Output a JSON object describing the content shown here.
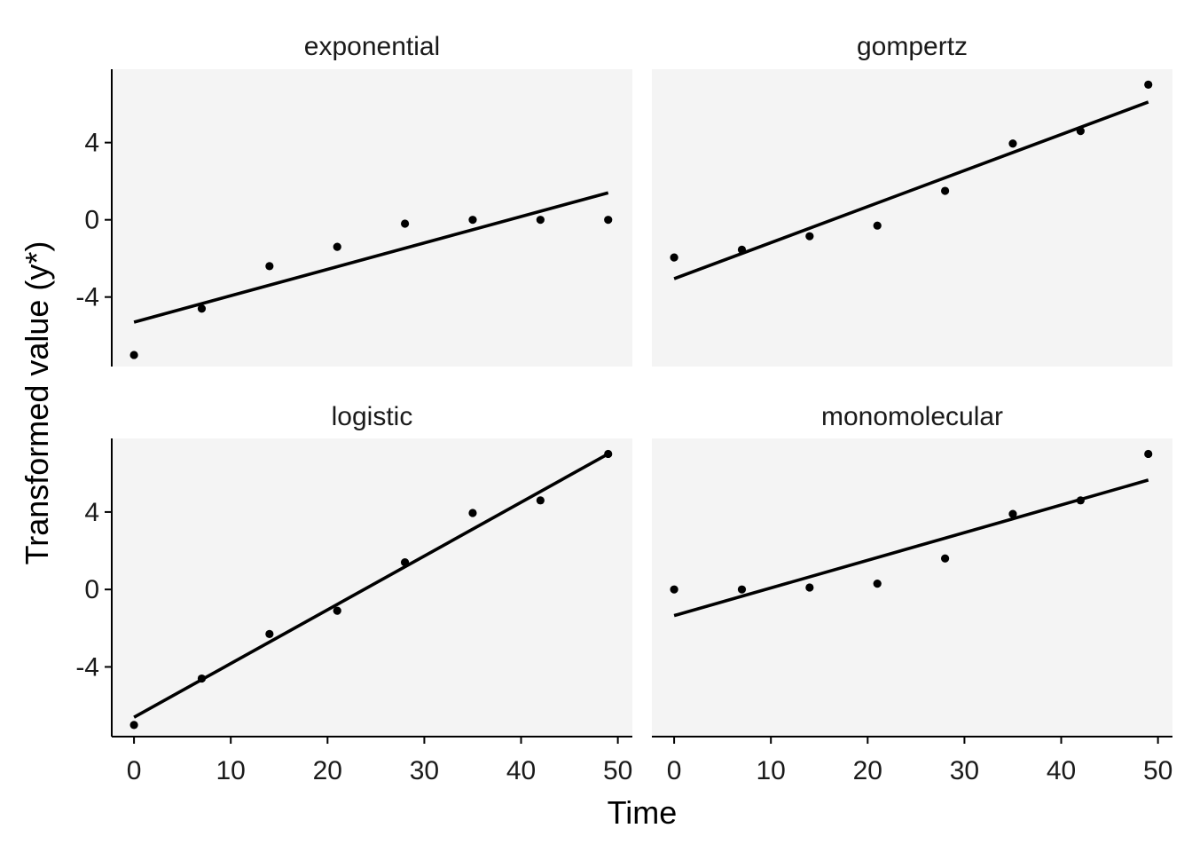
{
  "chart_data": {
    "type": "scatter",
    "layout": "facet-2x2",
    "xlabel": "Time",
    "ylabel": "Transformed value (y*)",
    "xlim": [
      -2.3,
      51.5
    ],
    "ylim": [
      -7.6,
      7.8
    ],
    "x_ticks": [
      0,
      10,
      20,
      30,
      40,
      50
    ],
    "y_ticks": [
      -4,
      0,
      4
    ],
    "grid": false,
    "colors": {
      "panel_background": "#f4f4f4",
      "points": "#000000",
      "lines": "#000000"
    },
    "x": [
      0,
      7,
      14,
      21,
      28,
      35,
      42,
      49
    ],
    "panels": [
      {
        "title": "exponential",
        "y": [
          -7.0,
          -4.6,
          -2.4,
          -1.4,
          -0.2,
          0.0,
          0.0,
          0.0
        ],
        "fit": {
          "x": [
            0,
            49
          ],
          "y": [
            -5.3,
            1.4
          ]
        }
      },
      {
        "title": "gompertz",
        "y": [
          -1.95,
          -1.55,
          -0.85,
          -0.3,
          1.5,
          3.95,
          4.6,
          7.0
        ],
        "fit": {
          "x": [
            0,
            49
          ],
          "y": [
            -3.05,
            6.1
          ]
        }
      },
      {
        "title": "logistic",
        "y": [
          -7.0,
          -4.6,
          -2.3,
          -1.1,
          1.4,
          3.95,
          4.6,
          7.0
        ],
        "fit": {
          "x": [
            0,
            49
          ],
          "y": [
            -6.6,
            7.0
          ]
        }
      },
      {
        "title": "monomolecular",
        "y": [
          0.0,
          0.0,
          0.1,
          0.3,
          1.6,
          3.9,
          4.6,
          7.0
        ],
        "fit": {
          "x": [
            0,
            49
          ],
          "y": [
            -1.35,
            5.65
          ]
        }
      }
    ]
  }
}
